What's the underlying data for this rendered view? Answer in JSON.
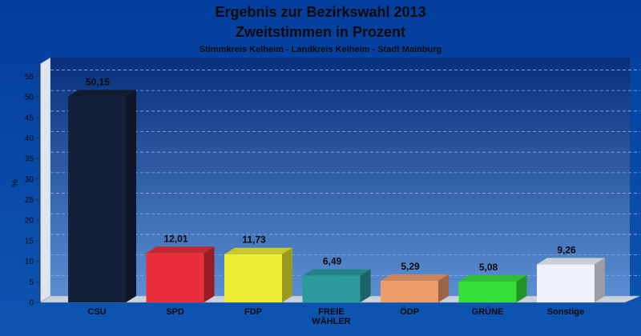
{
  "chart_data": {
    "type": "bar",
    "title": "Ergebnis zur Bezirkswahl 2013",
    "subtitle": "Zweitstimmen in Prozent",
    "subtitle2": "Stimmkreis Kelheim - Landkreis Kelheim - Stadt Mainburg",
    "ylabel": "%",
    "xlabel": "",
    "ylim": [
      0,
      58
    ],
    "yticks": [
      0,
      5,
      10,
      15,
      20,
      25,
      30,
      35,
      40,
      45,
      50,
      55
    ],
    "grid": true,
    "categories": [
      [
        "CSU"
      ],
      [
        "SPD"
      ],
      [
        "FDP"
      ],
      [
        "FREIE",
        "WÄHLER"
      ],
      [
        "ÖDP"
      ],
      [
        "GRÜNE"
      ],
      [
        "Sonstige"
      ]
    ],
    "values": [
      50.15,
      12.01,
      11.73,
      6.49,
      5.29,
      5.08,
      9.26
    ],
    "value_labels": [
      "50,15",
      "12,01",
      "11,73",
      "6,49",
      "5,29",
      "5,08",
      "9,26"
    ],
    "colors": [
      "#14213a",
      "#e82e38",
      "#eced34",
      "#2a9a9c",
      "#ee9c6a",
      "#36e23a",
      "#eef2fc"
    ],
    "background": "#0a46a0"
  }
}
